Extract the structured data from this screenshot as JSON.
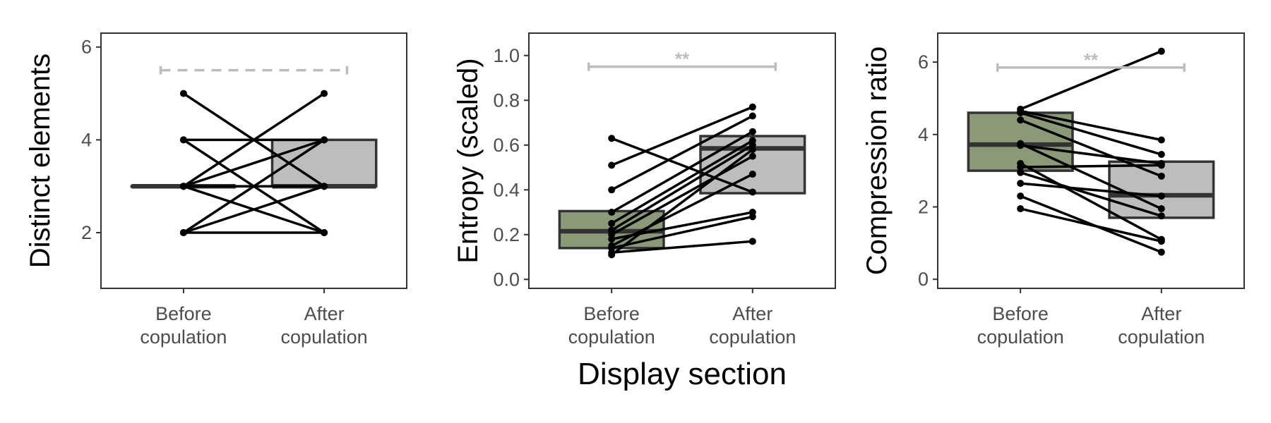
{
  "figure": {
    "xlabel": "Display section",
    "colors": {
      "before_fill": "#8a9a78",
      "after_fill": "#bdbdbd",
      "lines": "#000000",
      "bracket": "#bdbdbd",
      "border": "#333333"
    }
  },
  "chart_data": [
    {
      "type": "box",
      "ylabel": "Distinct elements",
      "ylim": [
        0.8,
        6.3
      ],
      "yticks": [
        2,
        4,
        6
      ],
      "ytick_labels": [
        "2",
        "4",
        "6"
      ],
      "categories": [
        "Before\ncopulation",
        "After\ncopulation"
      ],
      "boxes": [
        {
          "group": "Before copulation",
          "q1": 3,
          "median": 3,
          "q3": 3
        },
        {
          "group": "After copulation",
          "q1": 3,
          "median": 3,
          "q3": 4
        }
      ],
      "pairs": [
        [
          5,
          3
        ],
        [
          4,
          4
        ],
        [
          4,
          2
        ],
        [
          3,
          5
        ],
        [
          3,
          4
        ],
        [
          3,
          3
        ],
        [
          3,
          2
        ],
        [
          2,
          4
        ],
        [
          2,
          3
        ],
        [
          2,
          2
        ]
      ],
      "significance": {
        "y": 5.5,
        "label": "",
        "style": "dashed"
      }
    },
    {
      "type": "box",
      "ylabel": "Entropy (scaled)",
      "ylim": [
        -0.04,
        1.1
      ],
      "yticks": [
        0,
        0.2,
        0.4,
        0.6,
        0.8,
        1.0
      ],
      "ytick_labels": [
        "0.0",
        "0.2",
        "0.4",
        "0.6",
        "0.8",
        "1.0"
      ],
      "categories": [
        "Before\ncopulation",
        "After\ncopulation"
      ],
      "boxes": [
        {
          "group": "Before copulation",
          "q1": 0.14,
          "median": 0.215,
          "q3": 0.305
        },
        {
          "group": "After copulation",
          "q1": 0.385,
          "median": 0.585,
          "q3": 0.64
        }
      ],
      "pairs": [
        [
          0.63,
          0.39
        ],
        [
          0.51,
          0.77
        ],
        [
          0.4,
          0.73
        ],
        [
          0.3,
          0.66
        ],
        [
          0.25,
          0.62
        ],
        [
          0.22,
          0.6
        ],
        [
          0.2,
          0.55
        ],
        [
          0.18,
          0.3
        ],
        [
          0.15,
          0.47
        ],
        [
          0.14,
          0.28
        ],
        [
          0.12,
          0.17
        ],
        [
          0.11,
          0.58
        ]
      ],
      "significance": {
        "y": 0.95,
        "label": "**",
        "style": "solid"
      }
    },
    {
      "type": "box",
      "ylabel": "Compression ratio",
      "ylim": [
        -0.25,
        6.8
      ],
      "yticks": [
        0,
        2,
        4,
        6
      ],
      "ytick_labels": [
        "0",
        "2",
        "4",
        "6"
      ],
      "categories": [
        "Before\ncopulation",
        "After\ncopulation"
      ],
      "boxes": [
        {
          "group": "Before copulation",
          "q1": 3.0,
          "median": 3.72,
          "q3": 4.6
        },
        {
          "group": "After copulation",
          "q1": 1.7,
          "median": 2.32,
          "q3": 3.25
        }
      ],
      "pairs": [
        [
          4.7,
          6.3
        ],
        [
          4.65,
          3.85
        ],
        [
          4.6,
          3.45
        ],
        [
          4.4,
          2.85
        ],
        [
          3.75,
          1.95
        ],
        [
          3.7,
          3.2
        ],
        [
          3.2,
          1.1
        ],
        [
          3.1,
          3.15
        ],
        [
          2.95,
          1.75
        ],
        [
          2.65,
          2.3
        ],
        [
          2.3,
          0.75
        ],
        [
          1.95,
          1.05
        ]
      ],
      "significance": {
        "y": 5.85,
        "label": "**",
        "style": "solid"
      }
    }
  ]
}
